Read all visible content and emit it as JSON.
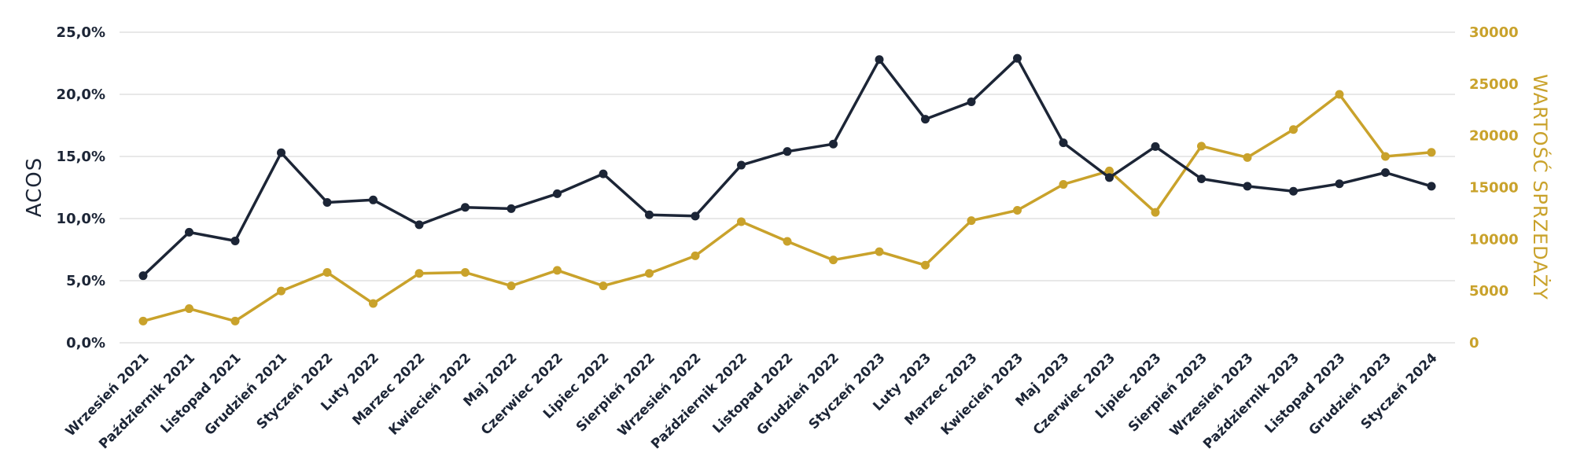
{
  "chart_data": {
    "type": "line",
    "title": "",
    "categories": [
      "Wrzesień 2021",
      "Październik 2021",
      "Listopad 2021",
      "Grudzień 2021",
      "Styczeń 2022",
      "Luty 2022",
      "Marzec 2022",
      "Kwiecień 2022",
      "Maj 2022",
      "Czerwiec 2022",
      "Lipiec 2022",
      "Sierpień 2022",
      "Wrzesień 2022",
      "Październik 2022",
      "Listopad 2022",
      "Grudzień 2022",
      "Styczeń 2023",
      "Luty 2023",
      "Marzec 2023",
      "Kwiecień 2023",
      "Maj 2023",
      "Czerwiec 2023",
      "Lipiec 2023",
      "Sierpień 2023",
      "Wrzesień 2023",
      "Październik 2023",
      "Listopad 2023",
      "Grudzień 2023",
      "Styczeń 2024"
    ],
    "ylabel_left": "ACOS",
    "ylabel_right": "WARTOŚĆ SPRZEDAŻY",
    "ylim_left": [
      0,
      25
    ],
    "ylim_right": [
      0,
      30000
    ],
    "y_ticks_left": [
      "0,0%",
      "5,0%",
      "10,0%",
      "15,0%",
      "20,0%",
      "25,0%"
    ],
    "y_ticks_right": [
      "0",
      "5000",
      "10000",
      "15000",
      "20000",
      "25000",
      "30000"
    ],
    "grid": true,
    "series": [
      {
        "axis": "left",
        "color": "#1c2536",
        "values": [
          5.4,
          8.9,
          8.2,
          15.3,
          11.3,
          11.5,
          9.5,
          10.9,
          10.8,
          12.0,
          13.6,
          10.3,
          10.2,
          14.3,
          15.4,
          16.0,
          22.8,
          18.0,
          19.4,
          22.9,
          16.1,
          13.3,
          15.8,
          13.2,
          12.6,
          12.2,
          12.8,
          13.7,
          12.6
        ]
      },
      {
        "axis": "right",
        "color": "#c9a22b",
        "values": [
          2100,
          3300,
          2100,
          5000,
          6800,
          3800,
          6700,
          6800,
          5500,
          7000,
          5500,
          6700,
          8400,
          11700,
          9800,
          8000,
          8800,
          7500,
          11800,
          12800,
          15300,
          16600,
          12600,
          19000,
          17900,
          20600,
          24000,
          18000,
          18400
        ]
      }
    ]
  }
}
